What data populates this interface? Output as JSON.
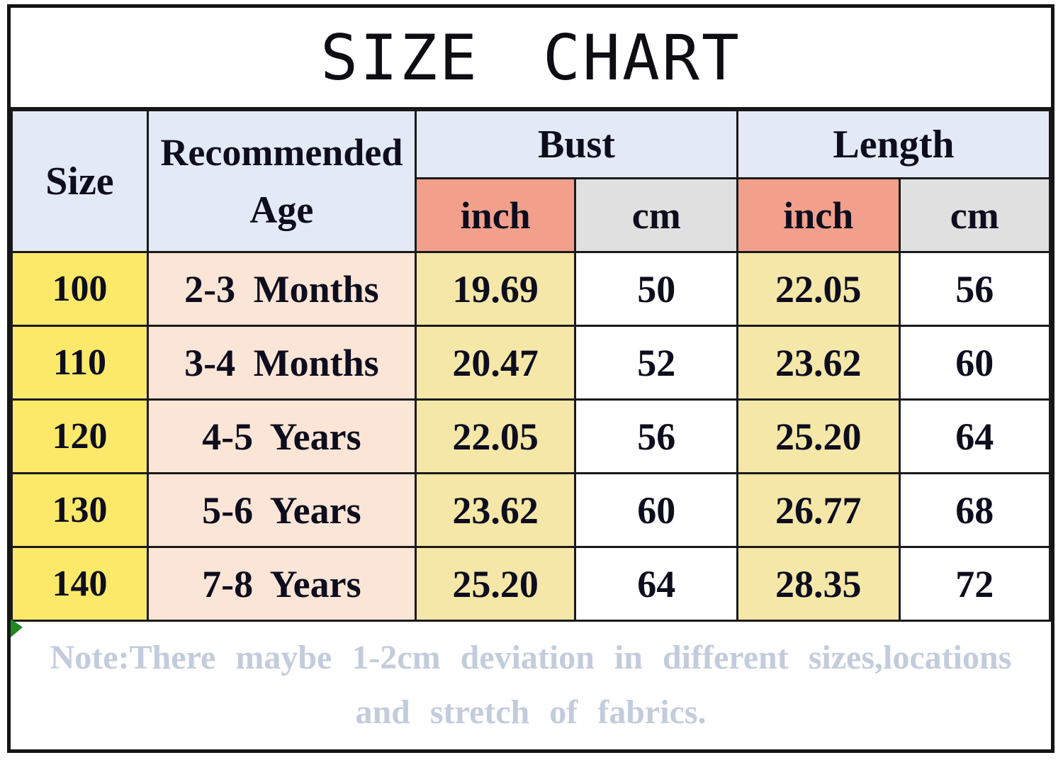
{
  "chart_data": {
    "type": "table",
    "title": "SIZE CHART",
    "headers": {
      "size": "Size",
      "age_line1": "Recommended",
      "age_line2": "Age",
      "bust": "Bust",
      "length": "Length",
      "inch": "inch",
      "cm": "cm"
    },
    "rows": [
      {
        "size": "100",
        "age": "2-3 Months",
        "bust_inch": "19.69",
        "bust_cm": "50",
        "length_inch": "22.05",
        "length_cm": "56"
      },
      {
        "size": "110",
        "age": "3-4 Months",
        "bust_inch": "20.47",
        "bust_cm": "52",
        "length_inch": "23.62",
        "length_cm": "60"
      },
      {
        "size": "120",
        "age": "4-5 Years",
        "bust_inch": "22.05",
        "bust_cm": "56",
        "length_inch": "25.20",
        "length_cm": "64"
      },
      {
        "size": "130",
        "age": "5-6 Years",
        "bust_inch": "23.62",
        "bust_cm": "60",
        "length_inch": "26.77",
        "length_cm": "68"
      },
      {
        "size": "140",
        "age": "7-8 Years",
        "bust_inch": "25.20",
        "bust_cm": "64",
        "length_inch": "28.35",
        "length_cm": "72"
      }
    ]
  },
  "note": {
    "line1": "Note:There maybe 1-2cm deviation in different sizes,locations",
    "line2": "and stretch of fabrics."
  },
  "colors": {
    "header_fill": "#e3e9f5",
    "inch_header_fill": "#f2a08b",
    "cm_header_fill": "#e0e0e0",
    "size_column_fill": "#fce96a",
    "age_column_fill": "#fbe5d6",
    "inch_column_fill": "#f5e7a8",
    "cm_column_fill": "#ffffff",
    "note_text": "#c3ccdc",
    "border": "#1a1a1a",
    "corner_marker_green": "#1f8a1f"
  }
}
